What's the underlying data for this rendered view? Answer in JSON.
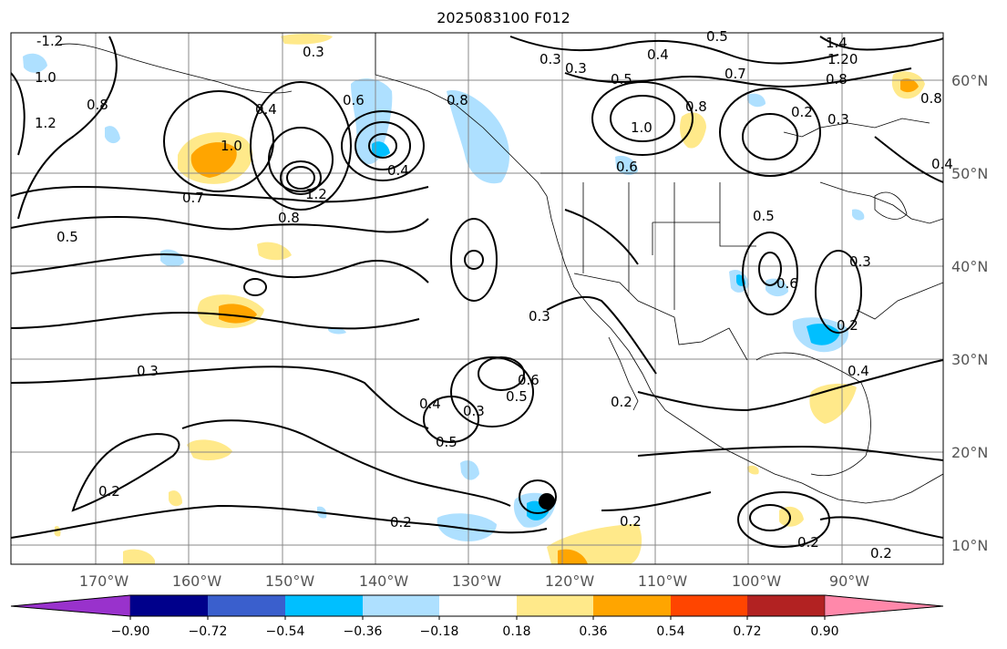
{
  "title": "2025083100 F012",
  "map": {
    "lon_ticks": [
      "170°W",
      "160°W",
      "150°W",
      "140°W",
      "130°W",
      "120°W",
      "110°W",
      "100°W",
      "90°W"
    ],
    "lat_ticks": [
      "60°N",
      "50°N",
      "40°N",
      "30°N",
      "20°N",
      "10°N"
    ],
    "contour_labels": [
      "-1.2",
      "1.0",
      "1.2",
      "0.8",
      "0.3",
      "1.0",
      "0.7",
      "0.5",
      "0.6",
      "0.8",
      "0.4",
      "1.2",
      "0.8",
      "0.3",
      "0.3",
      "0.4",
      "0.3",
      "0.5",
      "0.6",
      "0.5",
      "0.2",
      "0.2",
      "0.2",
      "0.2",
      "0.3",
      "0.5",
      "0.7",
      "0.3",
      "0.4",
      "0.5",
      "1.0",
      "0.8",
      "0.6",
      "0.2",
      "0.3",
      "0.8",
      "0.5",
      "0.3",
      "0.6",
      "0.2",
      "0.4",
      "0.2",
      "0.2",
      "1.4",
      "1.20",
      "0.8",
      "0.4",
      "0.4"
    ],
    "grid_color": "#888888",
    "cyclone_marker": "black-dot"
  },
  "colorbar": {
    "tick_labels": [
      "−0.90",
      "−0.72",
      "−0.54",
      "−0.36",
      "−0.18",
      "0.18",
      "0.36",
      "0.54",
      "0.72",
      "0.90"
    ],
    "colors": [
      "#9932cc",
      "#00008b",
      "#3a5fcd",
      "#00bfff",
      "#aee0ff",
      "#ffffff",
      "#ffe98a",
      "#ffa500",
      "#ff4500",
      "#b22222",
      "#ff88aa"
    ]
  }
}
